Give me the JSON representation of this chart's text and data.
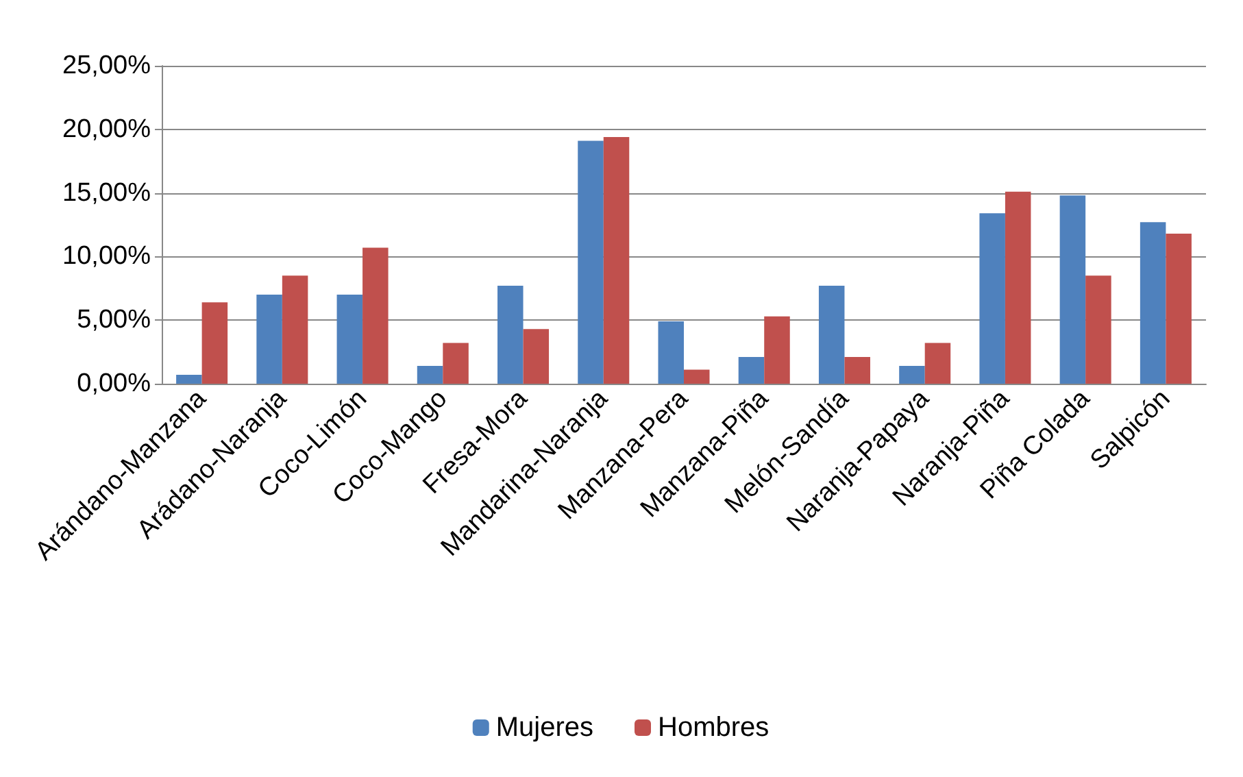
{
  "chart_data": {
    "type": "bar",
    "categories": [
      "Arándano-Manzana",
      "Arádano-Naranja",
      "Coco-Limón",
      "Coco-Mango",
      "Fresa-Mora",
      "Mandarina-Naranja",
      "Manzana-Pera",
      "Manzana-Piña",
      "Melón-Sandía",
      "Naranja-Papaya",
      "Naranja-Piña",
      "Piña Colada",
      "Salpicón"
    ],
    "series": [
      {
        "name": "Mujeres",
        "color": "#4f81bd",
        "values": [
          0.7,
          7.0,
          7.0,
          1.4,
          7.7,
          19.1,
          4.9,
          2.1,
          7.7,
          1.4,
          13.4,
          14.8,
          12.7
        ]
      },
      {
        "name": "Hombres",
        "color": "#c0504d",
        "values": [
          6.4,
          8.5,
          10.7,
          3.2,
          4.3,
          19.4,
          1.1,
          5.3,
          2.1,
          3.2,
          15.1,
          8.5,
          11.8
        ]
      }
    ],
    "ylim": [
      0,
      25
    ],
    "yticks": [
      {
        "value": 0,
        "label": "0,00%"
      },
      {
        "value": 5,
        "label": "5,00%"
      },
      {
        "value": 10,
        "label": "10,00%"
      },
      {
        "value": 15,
        "label": "15,00%"
      },
      {
        "value": 20,
        "label": "20,00%"
      },
      {
        "value": 25,
        "label": "25,00%"
      }
    ],
    "grid": "y",
    "legend": "bottom"
  }
}
